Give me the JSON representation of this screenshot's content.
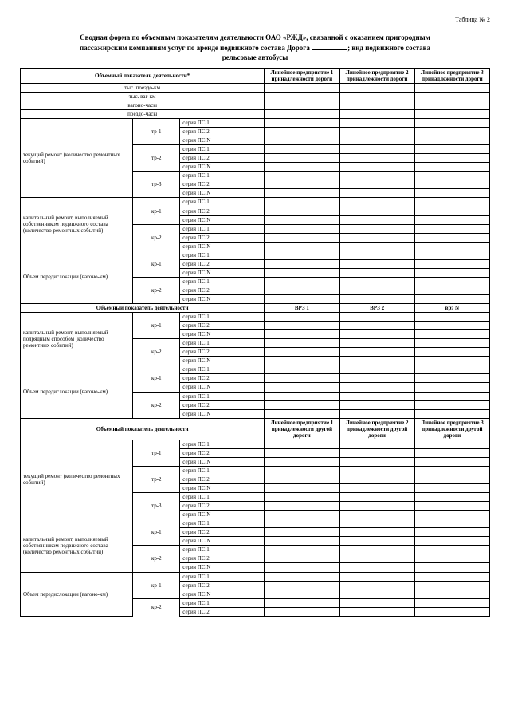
{
  "caption": "Таблица № 2",
  "title_l1": "Сводная форма по объемным показателям деятельности ОАО «РЖД», связанной с оказанием пригородным",
  "title_l2_a": "пассажирским компаниям услуг по аренде подвижного состава Дорога ",
  "title_l2_b": "; вид подвижного состава",
  "title_l3": "рельсовые автобусы",
  "hdr_ind": "Объемный показатель деятельности*",
  "hdr_e1": "Линейное предприятие 1 принадлежности дороги",
  "hdr_e2": "Линейное предприятие 2 принадлежности дороги",
  "hdr_e3": "Линейное предприятие 3 принадлежности дороги",
  "simple_rows": [
    "тыс. поездо-км",
    "тыс. ваг-км",
    "вагоно-часы",
    "поездо-часы"
  ],
  "group1": {
    "label": "текущий ремонт (количество ремонтных событий)",
    "subs": [
      "тр-1",
      "тр-2",
      "тр-3"
    ],
    "series": [
      "серия ПС 1",
      "серия ПС 2",
      "серия ПС N"
    ]
  },
  "group2": {
    "label": "капитальный ремонт, выполняемый собственником подвижного состава (количество ремонтных событий)",
    "subs": [
      "кр-1",
      "кр-2"
    ],
    "series": [
      "серия ПС 1",
      "серия ПС 2",
      "серия ПС N"
    ]
  },
  "group3": {
    "label": "Объем передислокации (вагоно-км)",
    "subs": [
      "кр-1",
      "кр-2"
    ],
    "series": [
      "серия ПС 1",
      "серия ПС 2",
      "серия ПС N"
    ]
  },
  "mid_hdr": "Объемный показатель деятельности",
  "mid_cols": [
    "ВРЗ 1",
    "ВРЗ 2",
    "врз N"
  ],
  "group4": {
    "label": "капитальный ремонт, выполняемый подрядным способом (количество ремонтных событий)",
    "subs": [
      "кр-1",
      "кр-2"
    ],
    "series": [
      "серия ПС 1",
      "серия ПС 2",
      "серия ПС N"
    ]
  },
  "group5": {
    "label": "Объем передислокации (вагоно-км)",
    "subs": [
      "кр-1",
      "кр-2"
    ],
    "series": [
      "серия ПС 1",
      "серия ПС 2",
      "серия ПС N"
    ]
  },
  "sec3_hdr": "Объемный показатель деятельности",
  "sec3_cols": [
    "Линейное предприятие 1 принадлежности другой дороги",
    "Линейное предприятие 2 принадлежности другой дороги",
    "Линейное предприятие 3 принадлежности другой дороги"
  ],
  "group6": {
    "label": "текущий ремонт (количество ремонтных событий)",
    "subs": [
      "тр-1",
      "тр-2",
      "тр-3"
    ],
    "series": [
      "серия ПС 1",
      "серия ПС 2",
      "серия ПС N"
    ]
  },
  "group7": {
    "label": "капитальный ремонт, выполняемый собственником подвижного состава (количество ремонтных событий)",
    "subs": [
      "кр-1",
      "кр-2"
    ],
    "series": [
      "серия ПС 1",
      "серия ПС 2",
      "серия ПС N"
    ]
  },
  "group8": {
    "label": "Объем передислокации (вагоно-км)",
    "subs": [
      "кр-1",
      "кр-2"
    ],
    "series": [
      "серия ПС 1",
      "серия ПС 2",
      "серия ПС N"
    ]
  }
}
